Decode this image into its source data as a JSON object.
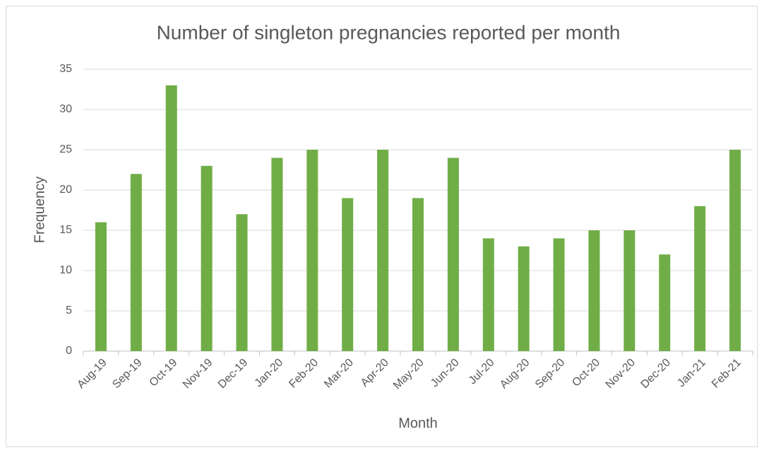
{
  "chart_data": {
    "type": "bar",
    "title": "Number of singleton pregnancies reported per month",
    "x_label": "Month",
    "y_label": "Frequency",
    "categories": [
      "Aug-19",
      "Sep-19",
      "Oct-19",
      "Nov-19",
      "Dec-19",
      "Jan-20",
      "Feb-20",
      "Mar-20",
      "Apr-20",
      "May-20",
      "Jun-20",
      "Jul-20",
      "Aug-20",
      "Sep-20",
      "Oct-20",
      "Nov-20",
      "Dec-20",
      "Jan-21",
      "Feb-21"
    ],
    "values": [
      16,
      22,
      33,
      23,
      17,
      24,
      25,
      19,
      25,
      19,
      24,
      14,
      13,
      14,
      15,
      15,
      12,
      18,
      25
    ],
    "color": "#70ad47",
    "ylim": [
      0,
      35
    ],
    "yticks": [
      0,
      5,
      10,
      15,
      20,
      25,
      30,
      35
    ],
    "grid": true
  }
}
